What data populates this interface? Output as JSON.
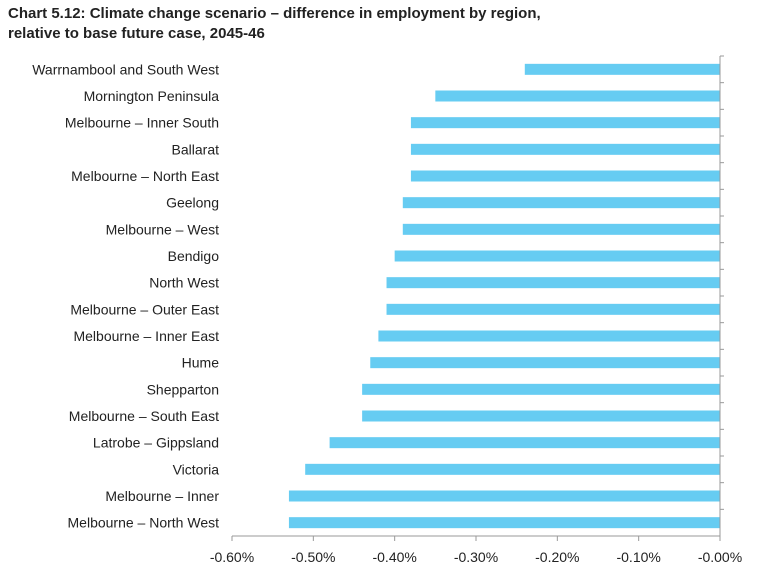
{
  "chart_data": {
    "type": "bar",
    "orientation": "horizontal",
    "title": "Chart 5.12: Climate change scenario – difference in employment by region, relative to base future case, 2045-46",
    "title_lines": [
      "Chart 5.12: Climate change scenario – difference in employment by region,",
      "relative to base future case, 2045-46"
    ],
    "categories": [
      "Warrnambool and South West",
      "Mornington Peninsula",
      "Melbourne – Inner South",
      "Ballarat",
      "Melbourne – North East",
      "Geelong",
      "Melbourne – West",
      "Bendigo",
      "North West",
      "Melbourne – Outer East",
      "Melbourne – Inner East",
      "Hume",
      "Shepparton",
      "Melbourne – South East",
      "Latrobe – Gippsland",
      "Victoria",
      "Melbourne – Inner",
      "Melbourne – North West"
    ],
    "values": [
      -0.24,
      -0.35,
      -0.38,
      -0.38,
      -0.38,
      -0.39,
      -0.39,
      -0.4,
      -0.41,
      -0.41,
      -0.42,
      -0.43,
      -0.44,
      -0.44,
      -0.48,
      -0.51,
      -0.53,
      -0.53
    ],
    "unit": "%",
    "xlim": [
      -0.6,
      0
    ],
    "xticks": [
      "-0.60%",
      "-0.50%",
      "-0.40%",
      "-0.30%",
      "-0.20%",
      "-0.10%",
      "-0.00%"
    ],
    "xlabel": "",
    "ylabel": "",
    "bar_color": "#66CCF2",
    "grid": false
  }
}
